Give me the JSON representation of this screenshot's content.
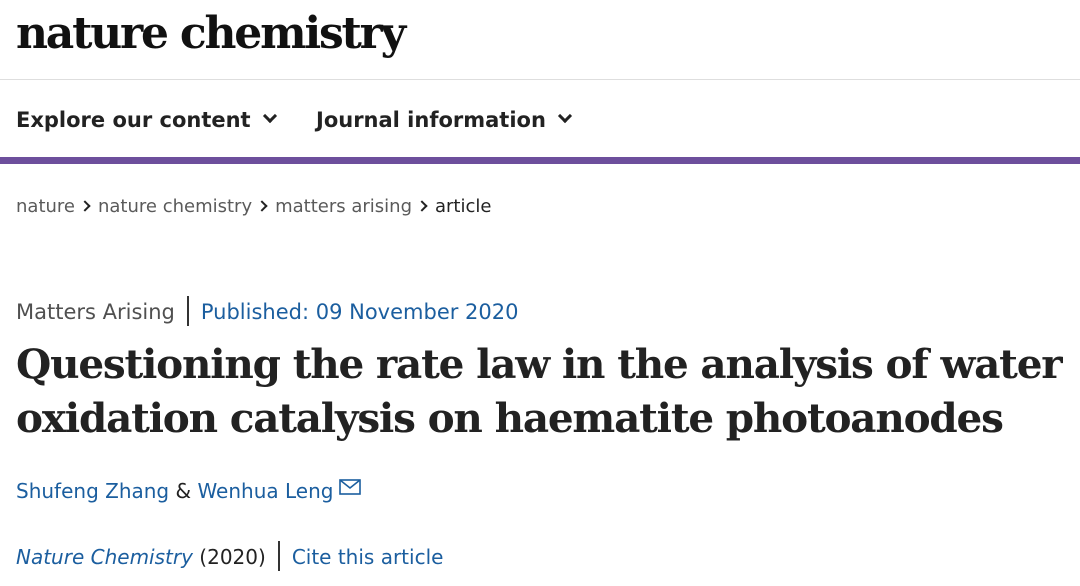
{
  "site": {
    "logo_text": "nature chemistry"
  },
  "nav": {
    "items": [
      {
        "label": "Explore our content"
      },
      {
        "label": "Journal information"
      }
    ],
    "accent_color": "#6d4f9c"
  },
  "breadcrumb": {
    "items": [
      "nature",
      "nature chemistry",
      "matters arising"
    ],
    "current": "article"
  },
  "article": {
    "type": "Matters Arising",
    "published": "Published: 09 November 2020",
    "title": "Questioning the rate law in the analysis of water oxidation catalysis on haematite photoanodes",
    "authors": [
      {
        "name": "Shufeng Zhang"
      },
      {
        "name": "Wenhua Leng"
      }
    ],
    "author_separator": "&",
    "contact_icon": "mail-icon",
    "journal": "Nature Chemistry",
    "year": "(2020)",
    "cite_label": "Cite this article",
    "link_color": "#1b5e9f"
  }
}
